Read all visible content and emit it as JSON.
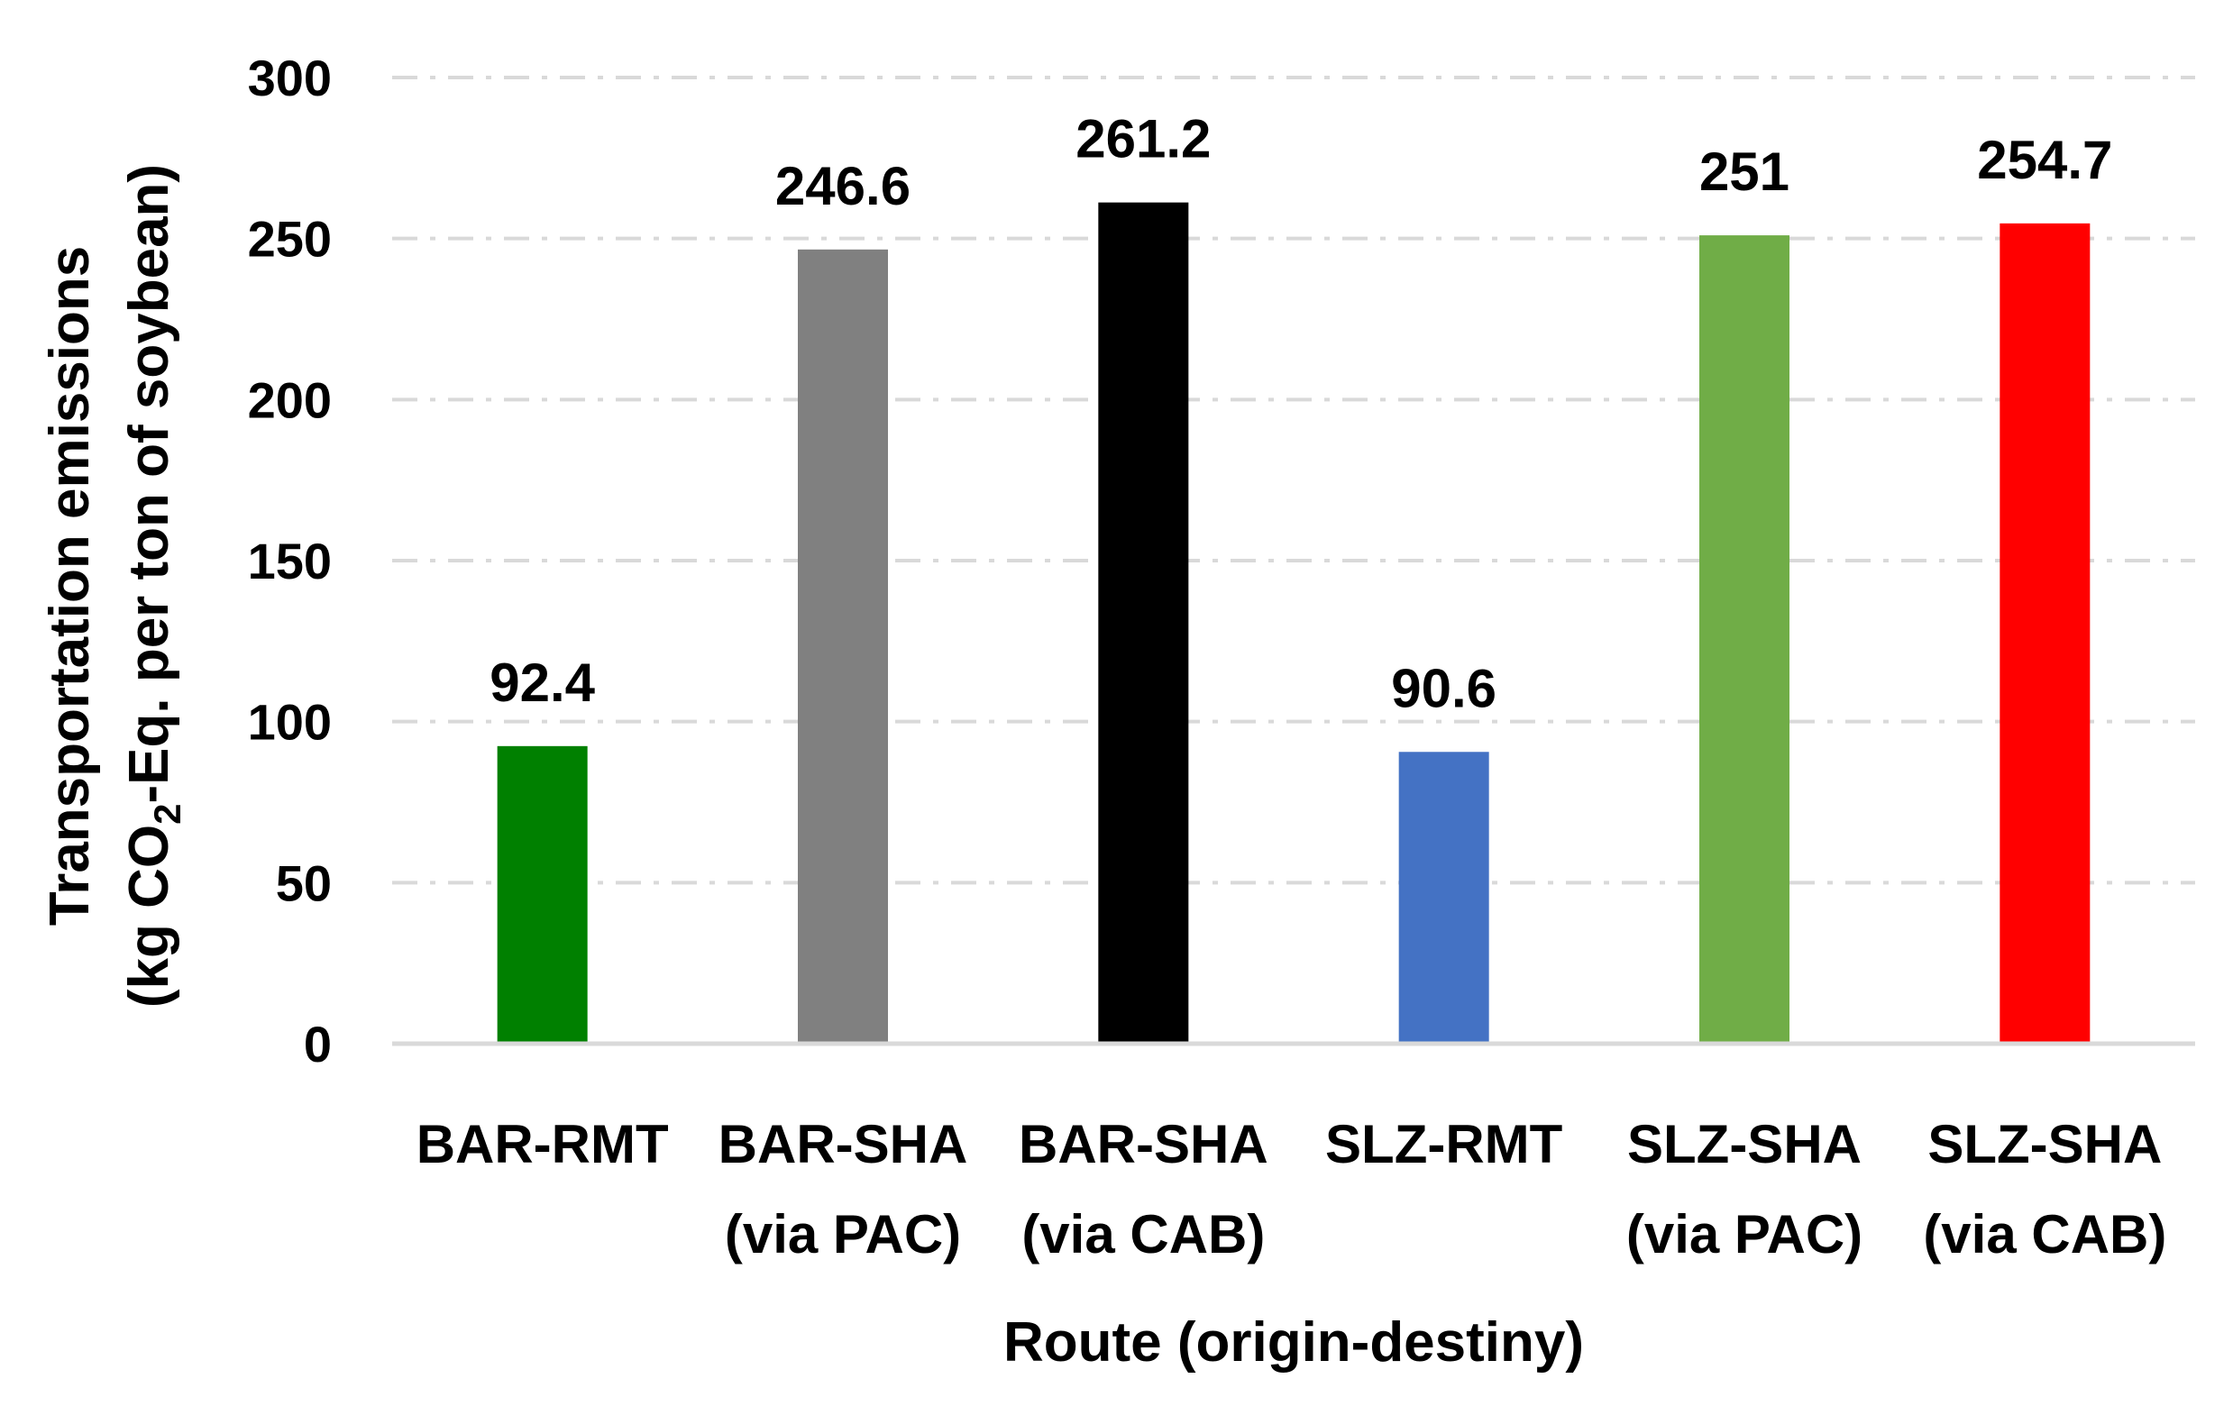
{
  "chart_data": {
    "type": "bar",
    "categories": [
      [
        "BAR-RMT"
      ],
      [
        "BAR-SHA",
        "(via PAC)"
      ],
      [
        "BAR-SHA",
        "(via CAB)"
      ],
      [
        "SLZ-RMT"
      ],
      [
        "SLZ-SHA",
        "(via PAC)"
      ],
      [
        "SLZ-SHA",
        "(via CAB)"
      ]
    ],
    "values": [
      92.4,
      246.6,
      261.2,
      90.6,
      251,
      254.7
    ],
    "data_labels": [
      "92.4",
      "246.6",
      "261.2",
      "90.6",
      "251",
      "254.7"
    ],
    "colors": [
      "#008000",
      "#808080",
      "#000000",
      "#4472C4",
      "#70AD47",
      "#FF0000"
    ],
    "xlabel": "Route (origin-destiny)",
    "ylabel_line1": "Transportation emissions",
    "ylabel_line2_pre": "(kg CO",
    "ylabel_line2_sub": "2",
    "ylabel_line2_post": "-Eq. per ton of soybean)",
    "ylim": [
      0,
      300
    ],
    "yticks": [
      0,
      50,
      100,
      150,
      200,
      250,
      300
    ],
    "grid": true,
    "grid_color": "#D9D9D9",
    "axis_color": "#D9D9D9"
  }
}
